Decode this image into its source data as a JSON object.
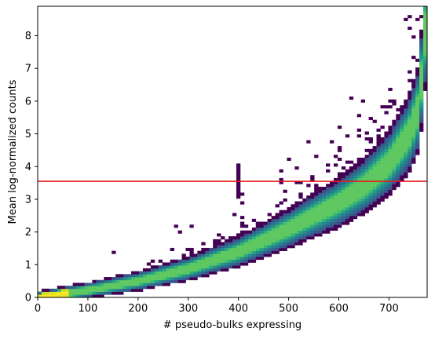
{
  "chart_data": {
    "type": "heatmap",
    "title": "",
    "xlabel": "# pseudo-bulks expressing",
    "ylabel": "Mean log-normalized counts",
    "xlim": [
      0,
      776
    ],
    "ylim": [
      0,
      8.9
    ],
    "x_ticks": [
      0,
      100,
      200,
      300,
      400,
      500,
      600,
      700
    ],
    "y_ticks": [
      0,
      1,
      2,
      3,
      4,
      5,
      6,
      7,
      8
    ],
    "x_tick_labels": [
      "0",
      "100",
      "200",
      "300",
      "400",
      "500",
      "600",
      "700"
    ],
    "y_tick_labels": [
      "0",
      "1",
      "2",
      "3",
      "4",
      "5",
      "6",
      "7",
      "8"
    ],
    "grid": false,
    "colormap": "viridis",
    "bins": {
      "nx": 100,
      "ny": 100
    },
    "density_ridge": [
      [
        0,
        0.0
      ],
      [
        100,
        0.22
      ],
      [
        200,
        0.5
      ],
      [
        300,
        0.88
      ],
      [
        400,
        1.4
      ],
      [
        500,
        2.1
      ],
      [
        600,
        2.9
      ],
      [
        650,
        3.4
      ],
      [
        700,
        4.1
      ],
      [
        740,
        5.0
      ],
      [
        760,
        5.8
      ],
      [
        776,
        8.8
      ]
    ],
    "outlier_cluster": {
      "x": 400,
      "y_range": [
        3.0,
        4.05
      ]
    },
    "threshold_line": {
      "y": 3.55,
      "color": "#e41a1c"
    }
  }
}
